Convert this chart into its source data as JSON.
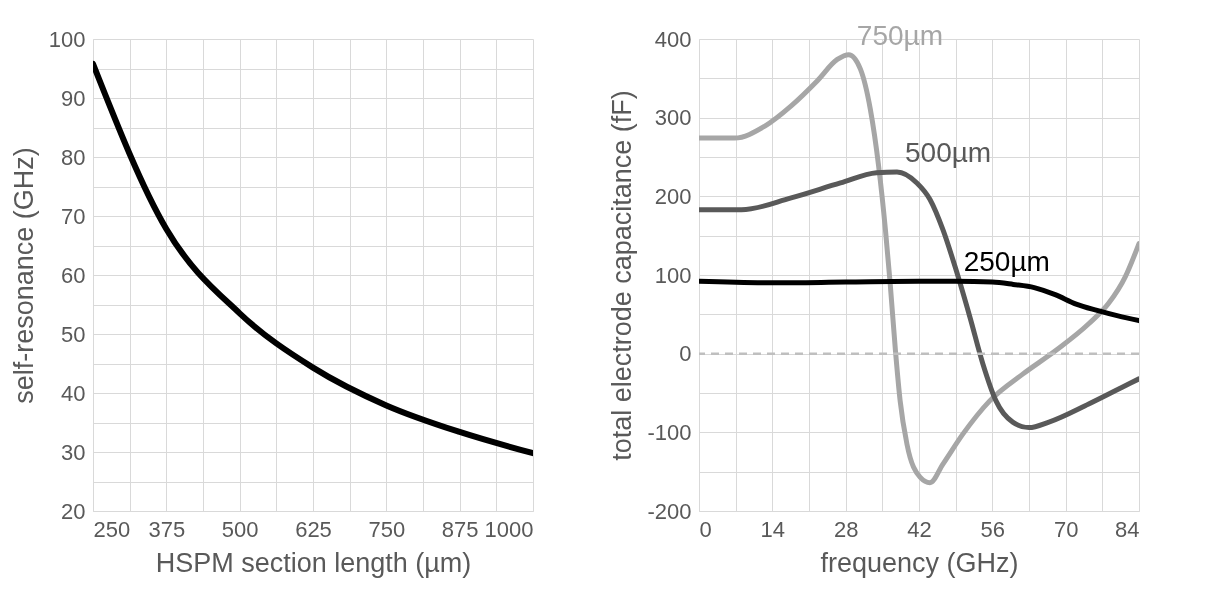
{
  "chart_data": [
    {
      "type": "line",
      "xlabel": "HSPM section length (µm)",
      "ylabel": "self-resonance (GHz)",
      "x": [
        250,
        375,
        500,
        625,
        750,
        875,
        1000
      ],
      "values": [
        95.8,
        67.8,
        53.5,
        44.3,
        37.9,
        33.4,
        29.8
      ],
      "color": "#000000",
      "xlim": [
        250,
        1000
      ],
      "xticks": [
        250,
        {
          "value": 312.5,
          "label": null
        },
        375,
        {
          "value": 437.5,
          "label": null
        },
        500,
        {
          "value": 562.5,
          "label": null
        },
        625,
        {
          "value": 687.5,
          "label": null
        },
        750,
        {
          "value": 812.5,
          "label": null
        },
        875,
        {
          "value": 937.5,
          "label": null
        },
        1000
      ],
      "ylim": [
        20,
        100
      ],
      "yticks": [
        20,
        {
          "value": 25,
          "label": null
        },
        30,
        {
          "value": 35,
          "label": null
        },
        40,
        {
          "value": 45,
          "label": null
        },
        50,
        {
          "value": 55,
          "label": null
        },
        60,
        {
          "value": 65,
          "label": null
        },
        70,
        {
          "value": 75,
          "label": null
        },
        80,
        {
          "value": 85,
          "label": null
        },
        90,
        {
          "value": 95,
          "label": null
        },
        100
      ],
      "grid": true
    },
    {
      "type": "line",
      "xlabel": "frequency (GHz)",
      "ylabel": "total electrode capacitance (fF)",
      "xlim": [
        0,
        84
      ],
      "xticks": [
        0,
        {
          "value": 7,
          "label": null
        },
        14,
        {
          "value": 21,
          "label": null
        },
        28,
        {
          "value": 35,
          "label": null
        },
        42,
        {
          "value": 49,
          "label": null
        },
        56,
        {
          "value": 63,
          "label": null
        },
        70,
        {
          "value": 77,
          "label": null
        },
        84
      ],
      "ylim": [
        -200,
        400
      ],
      "yticks": [
        -200,
        {
          "value": -150,
          "label": null
        },
        -100,
        {
          "value": -50,
          "label": null
        },
        0,
        {
          "value": 50,
          "label": null
        },
        100,
        {
          "value": 150,
          "label": null
        },
        200,
        {
          "value": 250,
          "label": null
        },
        300,
        {
          "value": 350,
          "label": null
        },
        400
      ],
      "grid": true,
      "series": [
        {
          "name": "750µm",
          "color": "#a6a6a6",
          "x": [
            0,
            6.8,
            12.5,
            17.6,
            22.6,
            26.4,
            28.6,
            30.8,
            32.7,
            34.3,
            35.6,
            36.5,
            37.5,
            38.4,
            39.7,
            42.2,
            44.1,
            46.6,
            50.4,
            55.5,
            61.8,
            68.1,
            74.4,
            78.2,
            81.4,
            84
          ],
          "values": [
            274,
            274,
            289,
            315,
            347,
            374,
            380,
            362,
            311,
            238,
            157,
            89,
            4,
            -60,
            -115,
            -157,
            -164,
            -140,
            -102,
            -60,
            -26,
            4,
            38,
            64,
            98,
            140
          ]
        },
        {
          "name": "500µm",
          "color": "#595959",
          "x": [
            0,
            8.1,
            17.6,
            27,
            33.9,
            37.8,
            41.6,
            44.1,
            46.6,
            49.1,
            51.7,
            54.2,
            56.7,
            59.9,
            63,
            66.8,
            74.4,
            80.7,
            84
          ],
          "values": [
            183,
            183,
            198,
            217,
            230,
            231,
            217,
            196,
            157,
            106,
            47,
            -13,
            -60,
            -87,
            -94,
            -87,
            -64,
            -43,
            -32
          ]
        },
        {
          "name": "250µm",
          "color": "#000000",
          "x": [
            0,
            14,
            28,
            42,
            49,
            56,
            60,
            64,
            68,
            72,
            76,
            80,
            84
          ],
          "values": [
            92,
            90,
            91,
            92,
            92,
            91,
            88,
            84,
            75,
            63,
            55,
            48,
            42
          ]
        }
      ],
      "ref_lines": [
        {
          "axis": "y",
          "value": 0,
          "color": "#bfbfbf",
          "line_style": "dashed"
        }
      ]
    }
  ]
}
